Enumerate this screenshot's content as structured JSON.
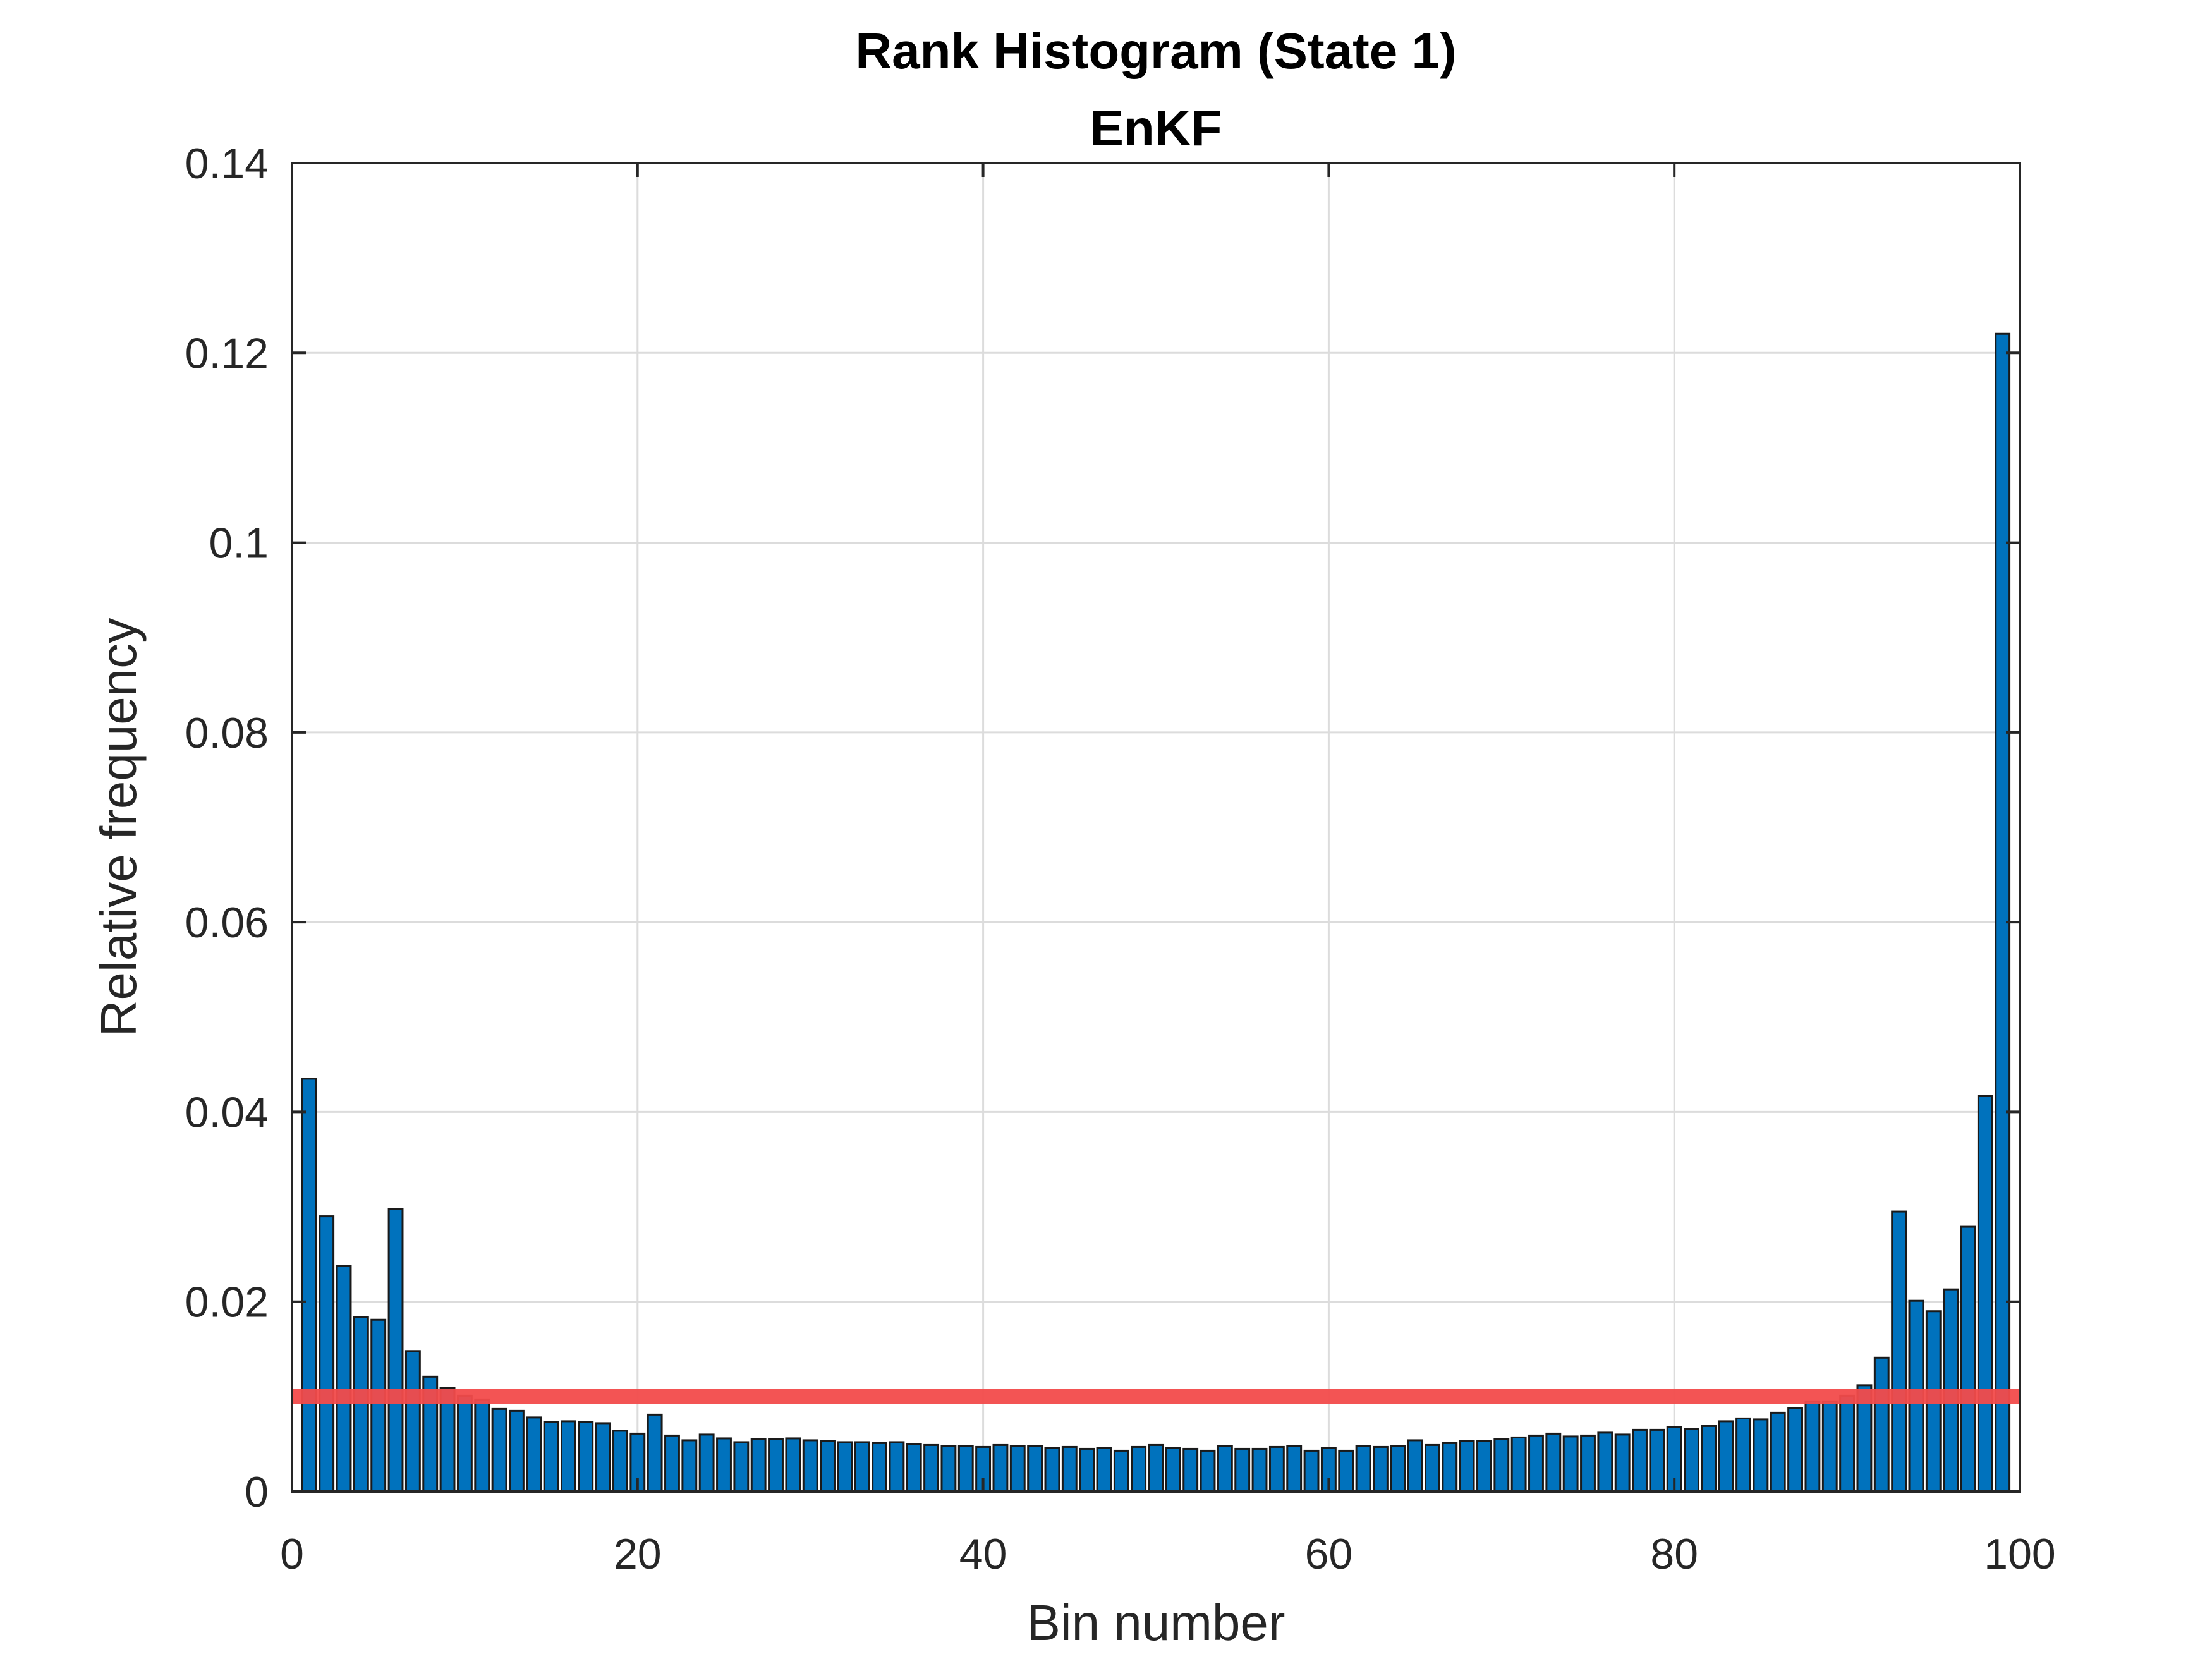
{
  "chart_data": {
    "type": "bar",
    "title": "Rank Histogram (State 1)",
    "subtitle": "EnKF",
    "xlabel": "Bin number",
    "ylabel": "Relative frequency",
    "xlim": [
      0,
      100
    ],
    "ylim": [
      0,
      0.14
    ],
    "xticks": [
      0,
      20,
      40,
      60,
      80,
      100
    ],
    "xtick_labels": [
      "0",
      "20",
      "40",
      "60",
      "80",
      "100"
    ],
    "yticks": [
      0,
      0.02,
      0.04,
      0.06,
      0.08,
      0.1,
      0.12,
      0.14
    ],
    "ytick_labels": [
      "0",
      "0.02",
      "0.04",
      "0.06",
      "0.08",
      "0.1",
      "0.12",
      "0.14"
    ],
    "grid": true,
    "bins": [
      1,
      2,
      3,
      4,
      5,
      6,
      7,
      8,
      9,
      10,
      11,
      12,
      13,
      14,
      15,
      16,
      17,
      18,
      19,
      20,
      21,
      22,
      23,
      24,
      25,
      26,
      27,
      28,
      29,
      30,
      31,
      32,
      33,
      34,
      35,
      36,
      37,
      38,
      39,
      40,
      41,
      42,
      43,
      44,
      45,
      46,
      47,
      48,
      49,
      50,
      51,
      52,
      53,
      54,
      55,
      56,
      57,
      58,
      59,
      60,
      61,
      62,
      63,
      64,
      65,
      66,
      67,
      68,
      69,
      70,
      71,
      72,
      73,
      74,
      75,
      76,
      77,
      78,
      79,
      80,
      81,
      82,
      83,
      84,
      85,
      86,
      87,
      88,
      89,
      90,
      91,
      92,
      93,
      94,
      95,
      96,
      97,
      98,
      99
    ],
    "values": [
      0.0435,
      0.029,
      0.0238,
      0.0184,
      0.0181,
      0.0298,
      0.0148,
      0.0121,
      0.0109,
      0.0101,
      0.0097,
      0.0087,
      0.0085,
      0.0078,
      0.0073,
      0.0074,
      0.0073,
      0.0072,
      0.0064,
      0.0061,
      0.0081,
      0.0059,
      0.0054,
      0.006,
      0.0056,
      0.0052,
      0.0055,
      0.0055,
      0.0056,
      0.0054,
      0.0053,
      0.0052,
      0.0052,
      0.0051,
      0.0052,
      0.005,
      0.0049,
      0.0048,
      0.0048,
      0.0047,
      0.0049,
      0.0048,
      0.0048,
      0.0046,
      0.0047,
      0.0045,
      0.0046,
      0.0043,
      0.0047,
      0.0049,
      0.0046,
      0.0045,
      0.0043,
      0.0048,
      0.0045,
      0.0045,
      0.0047,
      0.0048,
      0.0043,
      0.0046,
      0.0043,
      0.0048,
      0.0047,
      0.0048,
      0.0054,
      0.0049,
      0.0051,
      0.0053,
      0.0053,
      0.0055,
      0.0057,
      0.0059,
      0.0061,
      0.0058,
      0.0059,
      0.0062,
      0.006,
      0.0065,
      0.0065,
      0.0068,
      0.0066,
      0.0069,
      0.0074,
      0.0077,
      0.0076,
      0.0083,
      0.0088,
      0.0095,
      0.0095,
      0.0101,
      0.0112,
      0.0141,
      0.0295,
      0.0201,
      0.019,
      0.0213,
      0.0279,
      0.0417,
      0.122
    ],
    "reference_line": {
      "value": 0.01
    },
    "colors": {
      "bar_fill": "#0072BD",
      "bar_edge": "#1a1a1a",
      "reference_line": "#F24B4B",
      "grid": "#dcdcdc",
      "axis": "#262626"
    }
  }
}
